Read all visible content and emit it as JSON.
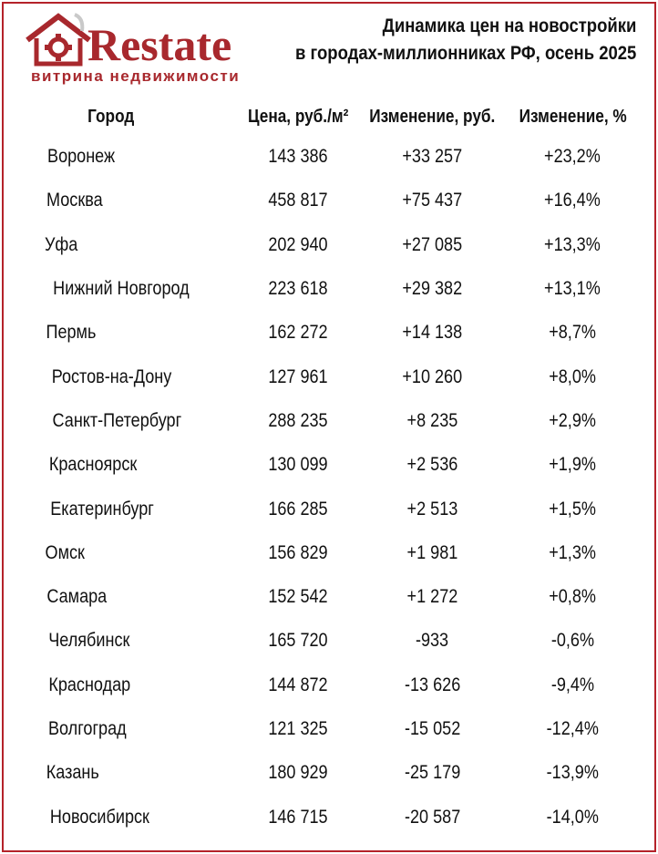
{
  "brand": {
    "name": "Restate",
    "tagline": "витрина недвижимости",
    "color": "#a8282d"
  },
  "title": {
    "line1": "Динамика цен на новостройки",
    "line2": "в городах-миллионниках РФ, осень 2025"
  },
  "table": {
    "headers": {
      "city": "Город",
      "price": "Цена, руб./м²",
      "change_rub": "Изменение, руб.",
      "change_pct": "Изменение, %"
    },
    "rows": [
      {
        "city": "Воронеж",
        "price": "143 386",
        "change_rub": "+33 257",
        "change_pct": "+23,2%"
      },
      {
        "city": "Москва",
        "price": "458 817",
        "change_rub": "+75 437",
        "change_pct": "+16,4%"
      },
      {
        "city": "Уфа",
        "price": "202 940",
        "change_rub": "+27 085",
        "change_pct": "+13,3%"
      },
      {
        "city": "Нижний Новгород",
        "price": "223 618",
        "change_rub": "+29 382",
        "change_pct": "+13,1%"
      },
      {
        "city": "Пермь",
        "price": "162 272",
        "change_rub": "+14 138",
        "change_pct": "+8,7%"
      },
      {
        "city": "Ростов-на-Дону",
        "price": "127 961",
        "change_rub": "+10 260",
        "change_pct": "+8,0%"
      },
      {
        "city": "Санкт-Петербург",
        "price": "288 235",
        "change_rub": "+8 235",
        "change_pct": "+2,9%"
      },
      {
        "city": "Красноярск",
        "price": "130 099",
        "change_rub": "+2 536",
        "change_pct": "+1,9%"
      },
      {
        "city": "Екатеринбург",
        "price": "166 285",
        "change_rub": "+2 513",
        "change_pct": "+1,5%"
      },
      {
        "city": "Омск",
        "price": "156 829",
        "change_rub": "+1 981",
        "change_pct": "+1,3%"
      },
      {
        "city": "Самара",
        "price": "152 542",
        "change_rub": "+1 272",
        "change_pct": "+0,8%"
      },
      {
        "city": "Челябинск",
        "price": "165 720",
        "change_rub": "-933",
        "change_pct": "-0,6%"
      },
      {
        "city": "Краснодар",
        "price": "144 872",
        "change_rub": "-13 626",
        "change_pct": "-9,4%"
      },
      {
        "city": "Волгоград",
        "price": "121 325",
        "change_rub": "-15 052",
        "change_pct": "-12,4%"
      },
      {
        "city": "Казань",
        "price": "180 929",
        "change_rub": "-25 179",
        "change_pct": "-13,9%"
      },
      {
        "city": "Новосибирск",
        "price": "146 715",
        "change_rub": "-20 587",
        "change_pct": "-14,0%"
      }
    ]
  }
}
